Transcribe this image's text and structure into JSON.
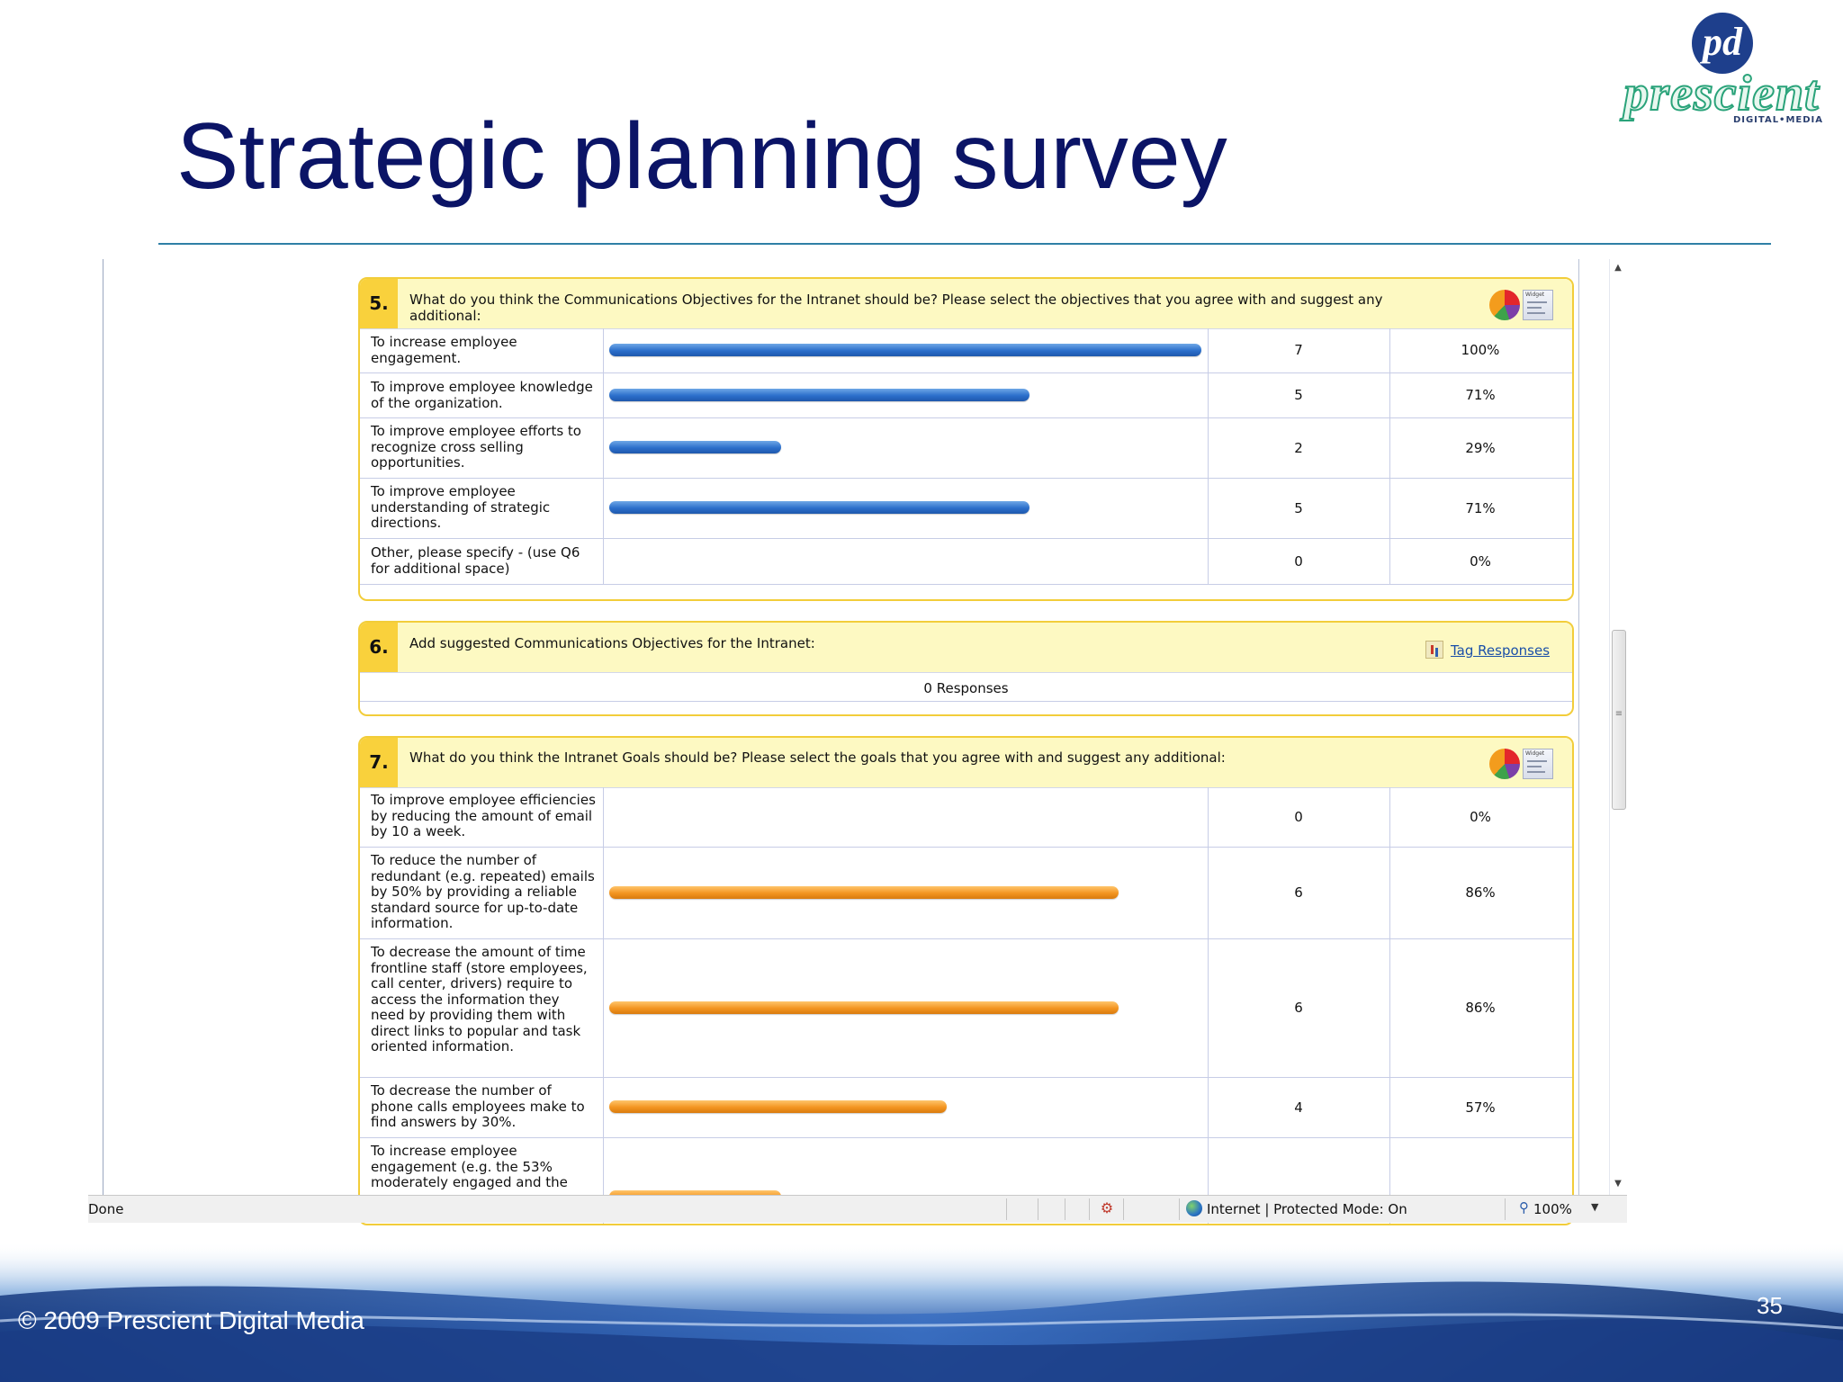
{
  "slide": {
    "title": "Strategic planning survey",
    "copyright": "© 2009 Prescient Digital Media",
    "page_number": "35"
  },
  "logo": {
    "monogram": "pd",
    "wordmark": "prescient",
    "tagline": "DIGITAL•MEDIA"
  },
  "survey": {
    "q5": {
      "number": "5.",
      "text": "What do you think the Communications Objectives for the Intranet should be? Please select the objectives that you agree with and suggest any additional:",
      "icons": [
        "pie-chart-icon",
        "widget-icon"
      ],
      "widget_label": "Widget",
      "rows": [
        {
          "label": "To increase employee engagement.",
          "count": "7",
          "percent": "100%",
          "fraction": 1.0
        },
        {
          "label": "To improve employee knowledge of the organization.",
          "count": "5",
          "percent": "71%",
          "fraction": 0.71
        },
        {
          "label": "To improve employee efforts to recognize cross selling opportunities.",
          "count": "2",
          "percent": "29%",
          "fraction": 0.29
        },
        {
          "label": "To improve employee understanding of strategic directions.",
          "count": "5",
          "percent": "71%",
          "fraction": 0.71
        },
        {
          "label": "Other, please specify - (use Q6 for additional space)",
          "count": "0",
          "percent": "0%",
          "fraction": 0
        }
      ],
      "bar_color": "#2c6fcb"
    },
    "q6": {
      "number": "6.",
      "text": "Add suggested Communications Objectives for the Intranet:",
      "tag_link": "Tag Responses",
      "responses": "0 Responses"
    },
    "q7": {
      "number": "7.",
      "text": "What do you think the Intranet Goals should be? Please select the goals that you agree with and suggest any additional:",
      "icons": [
        "pie-chart-icon",
        "widget-icon"
      ],
      "widget_label": "Widget",
      "rows": [
        {
          "label": "To improve employee efficiencies by reducing the amount of email by 10 a week.",
          "count": "0",
          "percent": "0%",
          "fraction": 0
        },
        {
          "label": "To reduce the number of redundant (e.g. repeated) emails by 50% by providing a reliable standard source for up-to-date information.",
          "count": "6",
          "percent": "86%",
          "fraction": 0.86
        },
        {
          "label": "To decrease the amount of time frontline staff (store employees, call center, drivers) require to access the information they need by providing them with direct links to popular and task oriented information.",
          "count": "6",
          "percent": "86%",
          "fraction": 0.86
        },
        {
          "label": "To decrease the number of phone calls employees make to find answers by 30%.",
          "count": "4",
          "percent": "57%",
          "fraction": 0.57
        },
        {
          "label": "To increase employee engagement (e.g. the 53% moderately engaged and the",
          "count": "",
          "percent": "",
          "fraction": 0.29
        }
      ],
      "bar_color": "#f39521"
    }
  },
  "status_bar": {
    "status": "Done",
    "zone": "Internet | Protected Mode: On",
    "zoom": "100%"
  },
  "scrollbar": {
    "up_arrow": "▲",
    "down_arrow": "▼",
    "grip": "≡"
  }
}
